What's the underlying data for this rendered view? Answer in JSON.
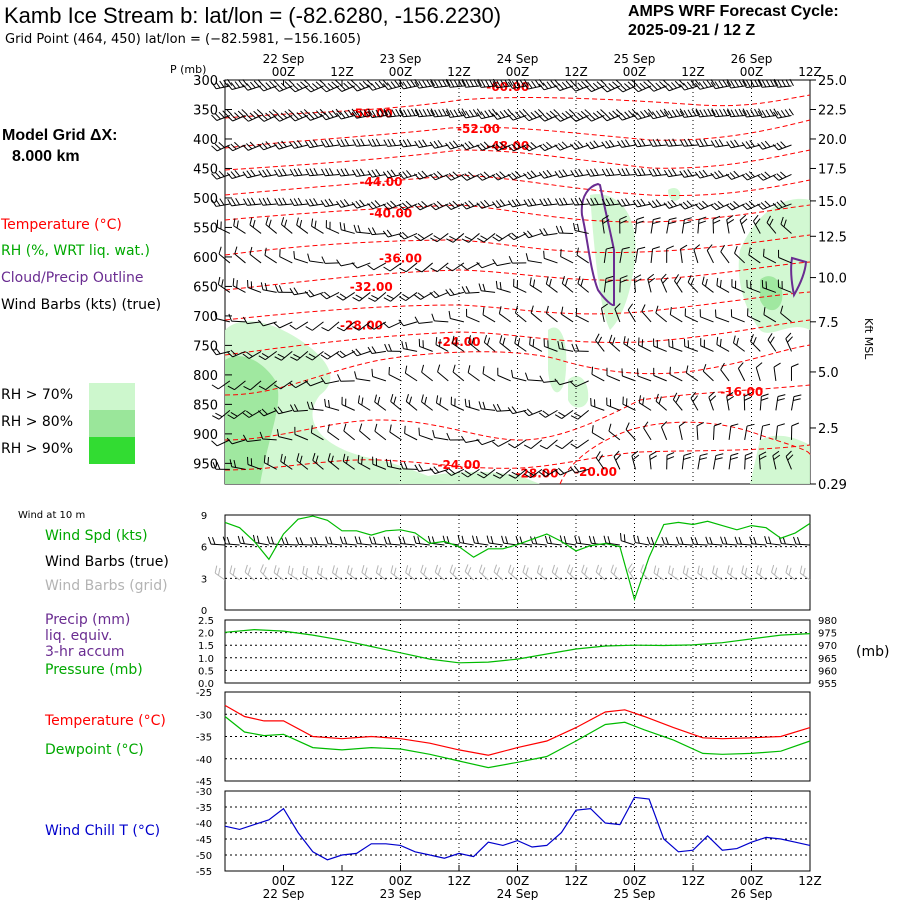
{
  "header": {
    "title": "Kamb Ice Stream b:  lat/lon = (-82.6280, -156.2230)",
    "grid_point": "Grid Point (464, 450) lat/lon = (−82.5981, −156.1605)",
    "cycle_line1": "AMPS WRF Forecast Cycle:",
    "cycle_line2": "2025-09-21 / 12  Z"
  },
  "left_legend": {
    "model_grid_1": "Model Grid ΔX:",
    "model_grid_2": "8.000 km",
    "temperature": "Temperature (°C)",
    "rh": "RH (%, WRT liq. wat.)",
    "cloud": "Cloud/Precip Outline",
    "wind_barbs": "Wind Barbs (kts) (true)",
    "rh70": "RH > 70%",
    "rh80": "RH > 80%",
    "rh90": "RH > 90%"
  },
  "colors": {
    "temperature": "#ff0000",
    "rh": "#00bb00",
    "cloud": "#6a2c91",
    "wind_chill": "#0000cc",
    "grid_barbs": "#b4b4b4",
    "rh70": "#cdf7cd",
    "rh80": "#9ae69a",
    "rh90": "#32dc32"
  },
  "time_axis": {
    "hour_labels": [
      "00Z",
      "12Z",
      "00Z",
      "12Z",
      "00Z",
      "12Z",
      "00Z",
      "12Z",
      "00Z",
      "12Z"
    ],
    "day_labels": [
      "22 Sep",
      "23 Sep",
      "24 Sep",
      "25 Sep",
      "26 Sep"
    ]
  },
  "chart_data": [
    {
      "type": "contour",
      "name": "cross_section",
      "p_axis_title": "P (mb)",
      "pressure_levels": [
        300,
        350,
        400,
        450,
        500,
        550,
        600,
        650,
        700,
        750,
        800,
        850,
        900,
        950
      ],
      "right_axis_title": "Kft MSL",
      "height_ticks": [
        {
          "p": 300,
          "label": "25.0"
        },
        {
          "p": 350,
          "label": "22.5"
        },
        {
          "p": 400,
          "label": "20.0"
        },
        {
          "p": 450,
          "label": "17.5"
        },
        {
          "p": 505,
          "label": "15.0"
        },
        {
          "p": 565,
          "label": "12.5"
        },
        {
          "p": 635,
          "label": "10.0"
        },
        {
          "p": 710,
          "label": "7.5"
        },
        {
          "p": 795,
          "label": "5.0"
        },
        {
          "p": 890,
          "label": "2.5"
        },
        {
          "p": 1000,
          "label": "0.29"
        }
      ],
      "temperature_labels": [
        {
          "text": "-60.00",
          "hour": 22,
          "p": 312
        },
        {
          "text": "-56.00",
          "hour": -6,
          "p": 357
        },
        {
          "text": "-52.00",
          "hour": 16,
          "p": 383
        },
        {
          "text": "-48.00",
          "hour": 22,
          "p": 412
        },
        {
          "text": "-44.00",
          "hour": -4,
          "p": 473
        },
        {
          "text": "-40.00",
          "hour": -2,
          "p": 526
        },
        {
          "text": "-36.00",
          "hour": 0,
          "p": 603
        },
        {
          "text": "-32.00",
          "hour": -6,
          "p": 651
        },
        {
          "text": "-28.00",
          "hour": -8,
          "p": 716
        },
        {
          "text": "-24.00",
          "hour": 12,
          "p": 744
        },
        {
          "text": "-24.00",
          "hour": 12,
          "p": 953
        },
        {
          "text": "-28.00",
          "hour": 28,
          "p": 967
        },
        {
          "text": "-20.00",
          "hour": 40,
          "p": 965
        },
        {
          "text": "-16.00",
          "hour": 70,
          "p": 829
        }
      ]
    },
    {
      "type": "line",
      "name": "wind10m",
      "title": "Wind at 10 m",
      "labels": [
        "Wind Spd (kts)",
        "Wind Barbs (true)",
        "Wind Barbs (grid)"
      ],
      "ylim": [
        0,
        9
      ],
      "yticks": [
        "9",
        "6",
        "3",
        "0"
      ],
      "x_hours": [
        -36,
        -33,
        -30,
        -27,
        -24,
        -21,
        -18,
        -15,
        -12,
        -9,
        -6,
        -3,
        0,
        3,
        6,
        9,
        12,
        15,
        18,
        21,
        24,
        27,
        30,
        33,
        36,
        39,
        42,
        45,
        48,
        51,
        54,
        57,
        60,
        63,
        66,
        69,
        72,
        75,
        78,
        81,
        84
      ],
      "speed": [
        8.3,
        7.8,
        6.5,
        4.8,
        7.2,
        8.6,
        8.9,
        8.5,
        7.5,
        7.5,
        7.1,
        7.5,
        7.6,
        7.3,
        6.3,
        6.5,
        6.0,
        5.0,
        5.8,
        5.8,
        6.2,
        6.7,
        7.2,
        6.5,
        5.6,
        6.1,
        6.3,
        6.0,
        1.0,
        5.0,
        8.1,
        8.3,
        8.1,
        8.4,
        8.0,
        7.6,
        8.0,
        7.8,
        6.8,
        7.3,
        8.2
      ]
    },
    {
      "type": "line",
      "name": "pressure",
      "labels": [
        "Precip (mm)",
        "liq. equiv.",
        "3-hr accum",
        "Pressure (mb)"
      ],
      "left_ylim": [
        0,
        2.5
      ],
      "left_ticks": [
        "2.5",
        "2.0",
        "1.5",
        "1.0",
        "0.5",
        "0.0"
      ],
      "right_ylim": [
        955,
        980
      ],
      "right_ticks": [
        "980",
        "975",
        "970",
        "965",
        "960",
        "955"
      ],
      "right_unit": "(mb)",
      "x_hours": [
        -36,
        -30,
        -24,
        -18,
        -12,
        -6,
        0,
        6,
        12,
        18,
        24,
        30,
        36,
        42,
        48,
        54,
        60,
        66,
        72,
        78,
        84
      ],
      "pressure_mb": [
        975.1,
        976.2,
        975.6,
        974.0,
        972.0,
        969.5,
        967.0,
        964.5,
        963.0,
        963.3,
        964.5,
        966.5,
        968.5,
        969.7,
        970.0,
        969.9,
        970.1,
        971.0,
        972.5,
        974.0,
        974.6
      ]
    },
    {
      "type": "line",
      "name": "temperature",
      "labels": [
        "Temperature (°C)",
        "Dewpoint (°C)"
      ],
      "ylim": [
        -45,
        -25
      ],
      "yticks": [
        "-25",
        "-30",
        "-35",
        "-40",
        "-45"
      ],
      "x_hours": [
        -36,
        -32,
        -28,
        -24,
        -18,
        -12,
        -6,
        0,
        6,
        12,
        18,
        24,
        30,
        36,
        42,
        46,
        50,
        56,
        62,
        66,
        72,
        78,
        84
      ],
      "temperature": [
        -28.0,
        -30.5,
        -31.5,
        -31.5,
        -35.0,
        -35.5,
        -35.0,
        -35.5,
        -36.5,
        -38.0,
        -39.2,
        -37.5,
        -36.0,
        -33.0,
        -29.5,
        -29.0,
        -30.5,
        -33.0,
        -35.3,
        -35.5,
        -35.3,
        -35.0,
        -33.0
      ],
      "dewpoint": [
        -30.5,
        -34.0,
        -34.8,
        -34.5,
        -37.5,
        -38.0,
        -37.5,
        -37.8,
        -39.0,
        -40.5,
        -42.0,
        -40.8,
        -39.5,
        -36.0,
        -32.3,
        -31.8,
        -33.5,
        -35.8,
        -38.8,
        -39.0,
        -38.8,
        -38.3,
        -36.0
      ]
    },
    {
      "type": "line",
      "name": "windchill",
      "labels": [
        "Wind Chill T (°C)"
      ],
      "ylim": [
        -55,
        -30
      ],
      "yticks": [
        "-30",
        "-35",
        "-40",
        "-45",
        "-50",
        "-55"
      ],
      "x_hours": [
        -36,
        -33,
        -30,
        -27,
        -24,
        -21,
        -18,
        -15,
        -12,
        -9,
        -6,
        -3,
        0,
        3,
        6,
        9,
        12,
        15,
        18,
        21,
        24,
        27,
        30,
        33,
        36,
        39,
        42,
        45,
        48,
        51,
        54,
        57,
        60,
        63,
        66,
        69,
        72,
        75,
        78,
        81,
        84
      ],
      "windchill": [
        -41,
        -42,
        -40.5,
        -39,
        -35.5,
        -43,
        -49,
        -51.5,
        -50,
        -49.5,
        -46.5,
        -46.5,
        -47,
        -49,
        -50,
        -51,
        -49.5,
        -50.5,
        -46,
        -47,
        -45.5,
        -47.5,
        -47,
        -43,
        -36,
        -35.5,
        -40,
        -40.5,
        -32,
        -32.5,
        -45,
        -49,
        -48.5,
        -44,
        -48.5,
        -48,
        -46,
        -44.5,
        -45,
        -46,
        -47
      ]
    }
  ]
}
